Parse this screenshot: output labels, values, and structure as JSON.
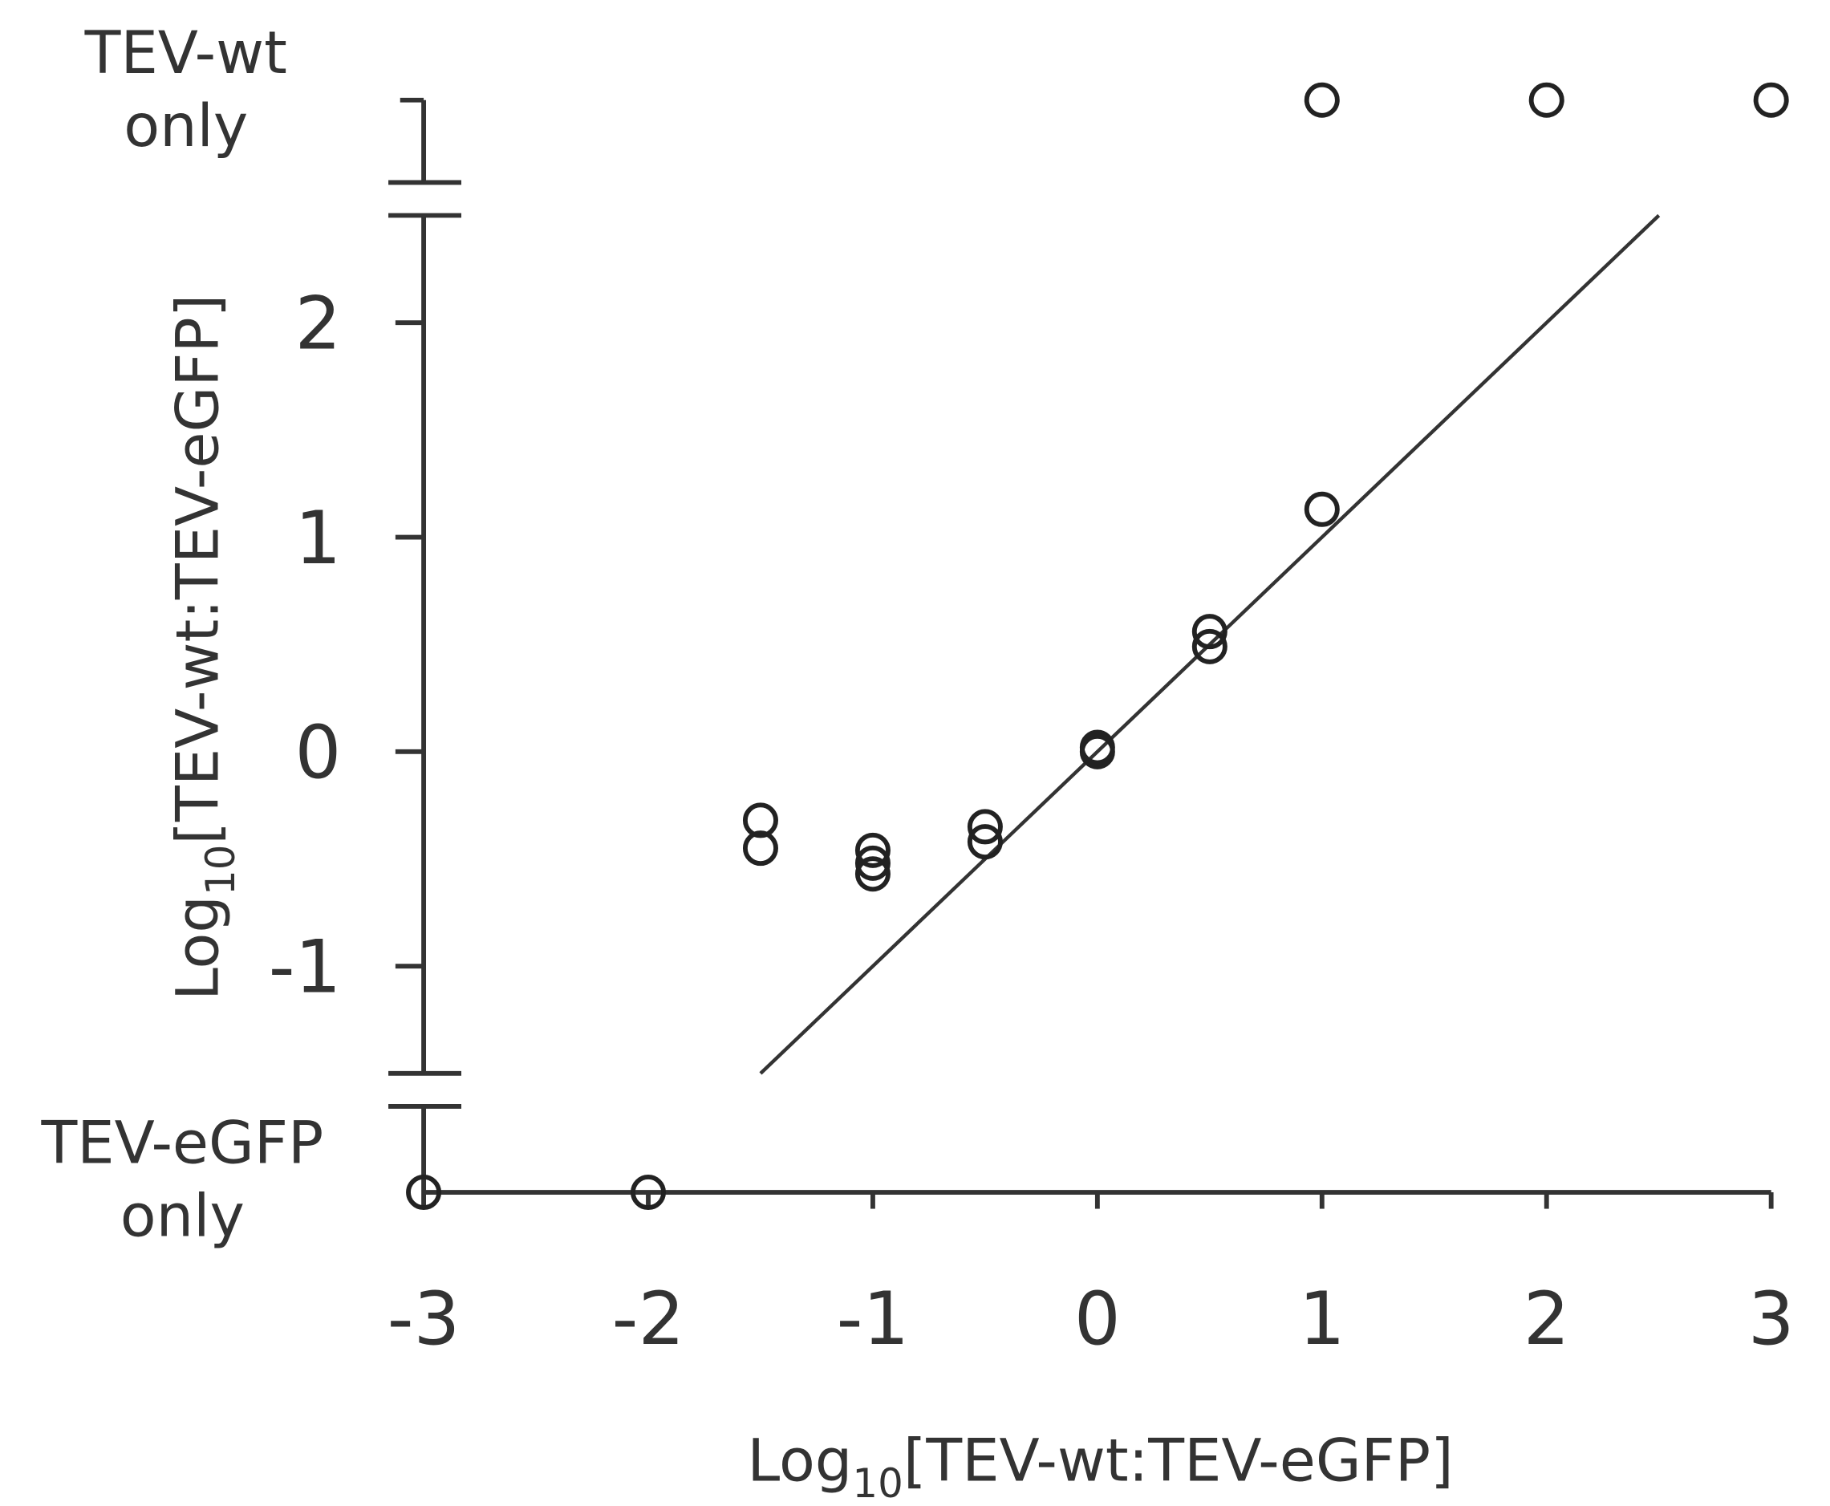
{
  "chart_data": {
    "type": "scatter",
    "x_label": {
      "main": "Log",
      "sub": "10",
      "rest": "[TEV-wt:TEV-eGFP]"
    },
    "y_label": {
      "main": "Log",
      "sub": "10",
      "rest": "[TEV-wt:TEV-eGFP]"
    },
    "y_break_labels": {
      "top": [
        "TEV-wt",
        "only"
      ],
      "bottom": [
        "TEV-eGFP",
        "only"
      ]
    },
    "xlim": [
      -3,
      3
    ],
    "xticks": [
      -3,
      -2,
      -1,
      0,
      1,
      2,
      3
    ],
    "ylim": [
      -1.5,
      2.5
    ],
    "yticks": [
      -1,
      0,
      1,
      2
    ],
    "color": "#222222",
    "points": {
      "x": [
        -1.5,
        -1.5,
        -1,
        -1,
        -1,
        -0.5,
        -0.5,
        0,
        0,
        0.5,
        0.5,
        1
      ],
      "y": [
        -0.32,
        -0.45,
        -0.46,
        -0.52,
        -0.57,
        -0.35,
        -0.42,
        0,
        0.02,
        0.56,
        0.49,
        1.13
      ]
    },
    "wt_only_x": [
      1,
      2,
      3
    ],
    "egfp_only_x": [
      -3,
      -2
    ],
    "fit_line": {
      "x": [
        -1.5,
        2.5
      ],
      "y": [
        -1.5,
        2.5
      ]
    }
  }
}
